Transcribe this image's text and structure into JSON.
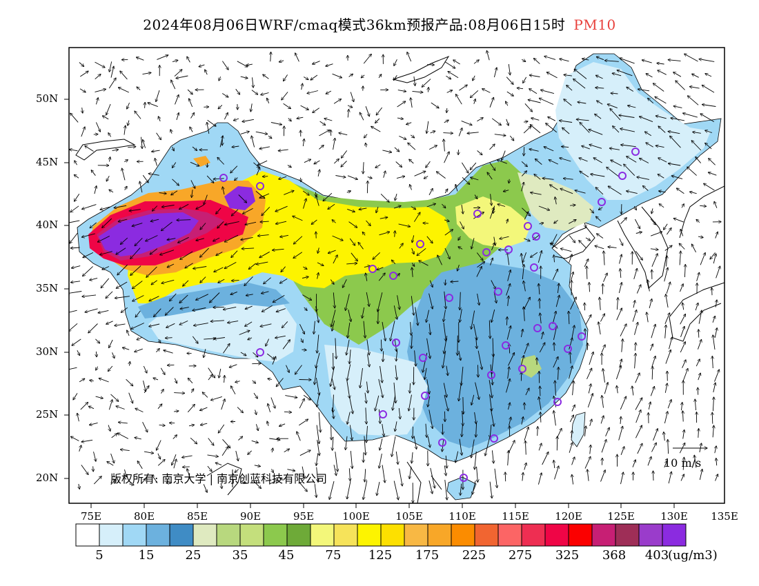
{
  "title": {
    "main": "2024年08月06日WRF/cmaq模式36km预报产品:08月06日15时",
    "parameter": "PM10",
    "parameter_color": "#e8413c"
  },
  "axes": {
    "lat_labels": [
      "50N",
      "45N",
      "40N",
      "35N",
      "30N",
      "25N",
      "20N"
    ],
    "lon_labels": [
      "75E",
      "80E",
      "85E",
      "90E",
      "95E",
      "100E",
      "105E",
      "110E",
      "115E",
      "120E",
      "125E",
      "130E",
      "135E"
    ]
  },
  "copyright": "版权所有: 南京大学  |  南京创蓝科技有限公司",
  "wind_reference": "10 m/s",
  "legend": {
    "unit": "(ug/m3)",
    "labels": [
      "5",
      "15",
      "25",
      "35",
      "45",
      "75",
      "125",
      "175",
      "225",
      "275",
      "325",
      "368",
      "403"
    ],
    "colors": [
      "#ffffff",
      "#d6effa",
      "#a0d8f5",
      "#6cb1de",
      "#3f8cc5",
      "#dfeac0",
      "#b8d87e",
      "#c4df7c",
      "#8cc94d",
      "#6eaa38",
      "#f3f77a",
      "#f6e35a",
      "#fdf400",
      "#fde000",
      "#f8b844",
      "#f8a728",
      "#fb8c00",
      "#f16531",
      "#fc6565",
      "#ee2e52",
      "#ef0546",
      "#fb0000",
      "#c71f74",
      "#9e2e57",
      "#9a3ccb",
      "#8b2be0"
    ]
  },
  "colors": {
    "frame": "#000000",
    "coastline": "#000000",
    "ocean": "#ffffff"
  }
}
